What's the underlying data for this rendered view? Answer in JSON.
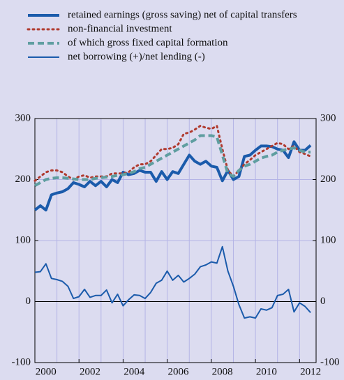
{
  "chart_data": {
    "type": "line",
    "legend": "top",
    "xlim": [
      2000,
      2012.75
    ],
    "xticks": [
      2000,
      2002,
      2004,
      2006,
      2008,
      2010,
      2012
    ],
    "x_minor_ticks": [
      2001,
      2003,
      2005,
      2007,
      2009,
      2011
    ],
    "ylim": [
      -100,
      300
    ],
    "yticks": [
      -100,
      0,
      100,
      200,
      300
    ],
    "grid": true,
    "x": [
      2000,
      2000.25,
      2000.5,
      2000.75,
      2001,
      2001.25,
      2001.5,
      2001.75,
      2002,
      2002.25,
      2002.5,
      2002.75,
      2003,
      2003.25,
      2003.5,
      2003.75,
      2004,
      2004.25,
      2004.5,
      2004.75,
      2005,
      2005.25,
      2005.5,
      2005.75,
      2006,
      2006.25,
      2006.5,
      2006.75,
      2007,
      2007.25,
      2007.5,
      2007.75,
      2008,
      2008.25,
      2008.5,
      2008.75,
      2009,
      2009.25,
      2009.5,
      2009.75,
      2010,
      2010.25,
      2010.5,
      2010.75,
      2011,
      2011.25,
      2011.5,
      2011.75,
      2012,
      2012.25,
      2012.5
    ],
    "series": [
      {
        "name": "retained earnings (gross saving) net of capital transfers",
        "color": "#1b5bab",
        "style": "solid",
        "width": 4,
        "values": [
          150,
          157,
          150,
          175,
          178,
          180,
          185,
          195,
          192,
          188,
          197,
          190,
          197,
          188,
          200,
          195,
          212,
          208,
          210,
          215,
          212,
          212,
          197,
          213,
          200,
          213,
          210,
          225,
          240,
          230,
          225,
          230,
          222,
          220,
          198,
          215,
          200,
          205,
          238,
          240,
          248,
          255,
          255,
          254,
          250,
          248,
          236,
          262,
          248,
          248,
          256
        ]
      },
      {
        "name": "non-financial investment",
        "color": "#b03a2e",
        "style": "dotted",
        "width": 3,
        "values": [
          198,
          205,
          212,
          215,
          215,
          212,
          205,
          200,
          205,
          207,
          203,
          205,
          205,
          205,
          210,
          210,
          210,
          212,
          220,
          225,
          225,
          230,
          240,
          250,
          250,
          252,
          258,
          275,
          277,
          282,
          288,
          285,
          283,
          288,
          250,
          215,
          205,
          215,
          225,
          232,
          240,
          245,
          250,
          255,
          260,
          258,
          250,
          255,
          245,
          242,
          238
        ]
      },
      {
        "name": "of which gross fixed capital formation",
        "color": "#5f9ea0",
        "style": "dashed",
        "width": 4,
        "values": [
          190,
          195,
          200,
          202,
          203,
          203,
          202,
          201,
          200,
          200,
          200,
          202,
          203,
          204,
          205,
          207,
          208,
          210,
          213,
          218,
          220,
          225,
          230,
          235,
          240,
          245,
          250,
          255,
          260,
          265,
          272,
          272,
          272,
          270,
          240,
          210,
          205,
          215,
          222,
          225,
          230,
          235,
          238,
          240,
          245,
          248,
          250,
          252,
          248,
          245,
          245
        ]
      },
      {
        "name": "net borrowing (+)/net lending (-)",
        "color": "#1b5bab",
        "style": "solid",
        "width": 2,
        "values": [
          48,
          49,
          62,
          38,
          36,
          33,
          25,
          5,
          8,
          20,
          7,
          10,
          10,
          19,
          -2,
          12,
          -7,
          3,
          11,
          10,
          5,
          15,
          30,
          35,
          50,
          35,
          43,
          32,
          38,
          45,
          57,
          60,
          65,
          63,
          90,
          50,
          25,
          -5,
          -27,
          -25,
          -27,
          -12,
          -14,
          -10,
          10,
          12,
          20,
          -17,
          -2,
          -8,
          -18
        ]
      }
    ]
  }
}
